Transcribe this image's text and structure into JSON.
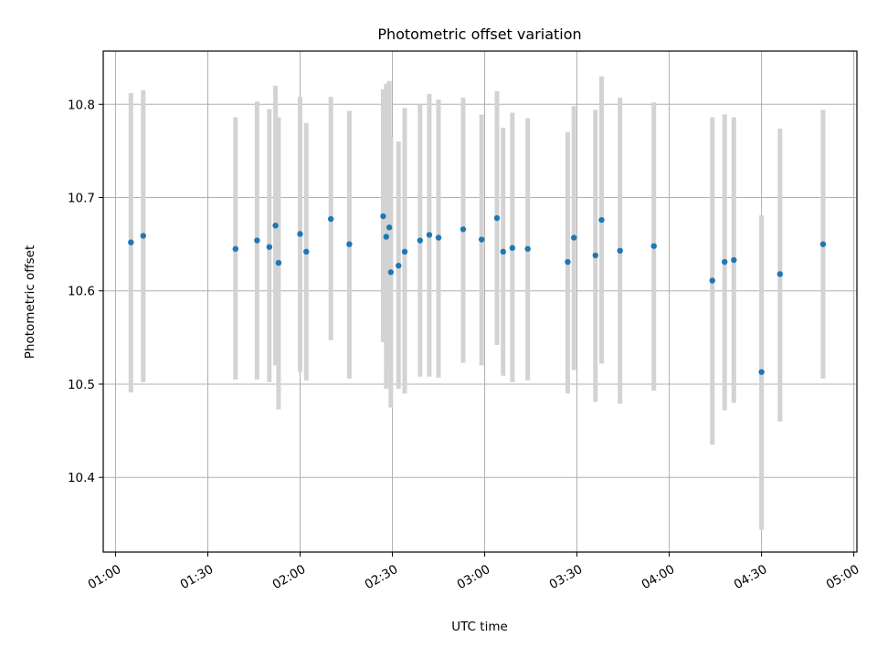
{
  "chart_data": {
    "type": "scatter",
    "title": "Photometric offset variation",
    "xlabel": "UTC time",
    "ylabel": "Photometric offset",
    "xlim": [
      "00:56",
      "05:01"
    ],
    "ylim": [
      10.32,
      10.857
    ],
    "x_ticks": [
      "01:00",
      "01:30",
      "02:00",
      "02:30",
      "03:00",
      "03:30",
      "04:00",
      "04:30",
      "05:00"
    ],
    "y_ticks": [
      10.4,
      10.5,
      10.6,
      10.7,
      10.8
    ],
    "y_tick_labels": [
      "10.4",
      "10.5",
      "10.6",
      "10.7",
      "10.8"
    ],
    "grid": true,
    "marker_color": "#1f77b4",
    "errorbar_color": "#d3d3d3",
    "points": [
      {
        "t": "01:05",
        "y": 10.652,
        "lo": 10.491,
        "hi": 10.812
      },
      {
        "t": "01:09",
        "y": 10.659,
        "lo": 10.502,
        "hi": 10.815
      },
      {
        "t": "01:39",
        "y": 10.645,
        "lo": 10.505,
        "hi": 10.786
      },
      {
        "t": "01:46",
        "y": 10.654,
        "lo": 10.505,
        "hi": 10.803
      },
      {
        "t": "01:50",
        "y": 10.647,
        "lo": 10.502,
        "hi": 10.795
      },
      {
        "t": "01:52",
        "y": 10.67,
        "lo": 10.52,
        "hi": 10.82
      },
      {
        "t": "01:53",
        "y": 10.63,
        "lo": 10.473,
        "hi": 10.786
      },
      {
        "t": "02:00",
        "y": 10.661,
        "lo": 10.513,
        "hi": 10.808
      },
      {
        "t": "02:02",
        "y": 10.642,
        "lo": 10.504,
        "hi": 10.78
      },
      {
        "t": "02:10",
        "y": 10.677,
        "lo": 10.547,
        "hi": 10.808
      },
      {
        "t": "02:16",
        "y": 10.65,
        "lo": 10.506,
        "hi": 10.793
      },
      {
        "t": "02:27",
        "y": 10.68,
        "lo": 10.545,
        "hi": 10.816
      },
      {
        "t": "02:28",
        "y": 10.658,
        "lo": 10.495,
        "hi": 10.822
      },
      {
        "t": "02:29",
        "y": 10.668,
        "lo": 10.52,
        "hi": 10.825
      },
      {
        "t": "02:29.5",
        "y": 10.62,
        "lo": 10.475,
        "hi": 10.765
      },
      {
        "t": "02:32",
        "y": 10.627,
        "lo": 10.495,
        "hi": 10.76
      },
      {
        "t": "02:34",
        "y": 10.642,
        "lo": 10.49,
        "hi": 10.796
      },
      {
        "t": "02:39",
        "y": 10.654,
        "lo": 10.508,
        "hi": 10.8
      },
      {
        "t": "02:42",
        "y": 10.66,
        "lo": 10.508,
        "hi": 10.811
      },
      {
        "t": "02:45",
        "y": 10.657,
        "lo": 10.507,
        "hi": 10.805
      },
      {
        "t": "02:53",
        "y": 10.666,
        "lo": 10.523,
        "hi": 10.807
      },
      {
        "t": "02:59",
        "y": 10.655,
        "lo": 10.52,
        "hi": 10.789
      },
      {
        "t": "03:04",
        "y": 10.678,
        "lo": 10.542,
        "hi": 10.814
      },
      {
        "t": "03:06",
        "y": 10.642,
        "lo": 10.509,
        "hi": 10.775
      },
      {
        "t": "03:09",
        "y": 10.646,
        "lo": 10.502,
        "hi": 10.791
      },
      {
        "t": "03:14",
        "y": 10.645,
        "lo": 10.504,
        "hi": 10.785
      },
      {
        "t": "03:27",
        "y": 10.631,
        "lo": 10.49,
        "hi": 10.77
      },
      {
        "t": "03:29",
        "y": 10.657,
        "lo": 10.515,
        "hi": 10.798
      },
      {
        "t": "03:36",
        "y": 10.638,
        "lo": 10.481,
        "hi": 10.794
      },
      {
        "t": "03:38",
        "y": 10.676,
        "lo": 10.522,
        "hi": 10.83
      },
      {
        "t": "03:44",
        "y": 10.643,
        "lo": 10.479,
        "hi": 10.807
      },
      {
        "t": "03:55",
        "y": 10.648,
        "lo": 10.493,
        "hi": 10.802
      },
      {
        "t": "04:14",
        "y": 10.611,
        "lo": 10.435,
        "hi": 10.786
      },
      {
        "t": "04:18",
        "y": 10.631,
        "lo": 10.472,
        "hi": 10.789
      },
      {
        "t": "04:21",
        "y": 10.633,
        "lo": 10.48,
        "hi": 10.786
      },
      {
        "t": "04:30",
        "y": 10.513,
        "lo": 10.344,
        "hi": 10.681
      },
      {
        "t": "04:36",
        "y": 10.618,
        "lo": 10.46,
        "hi": 10.774
      },
      {
        "t": "04:50",
        "y": 10.65,
        "lo": 10.506,
        "hi": 10.794
      }
    ]
  }
}
